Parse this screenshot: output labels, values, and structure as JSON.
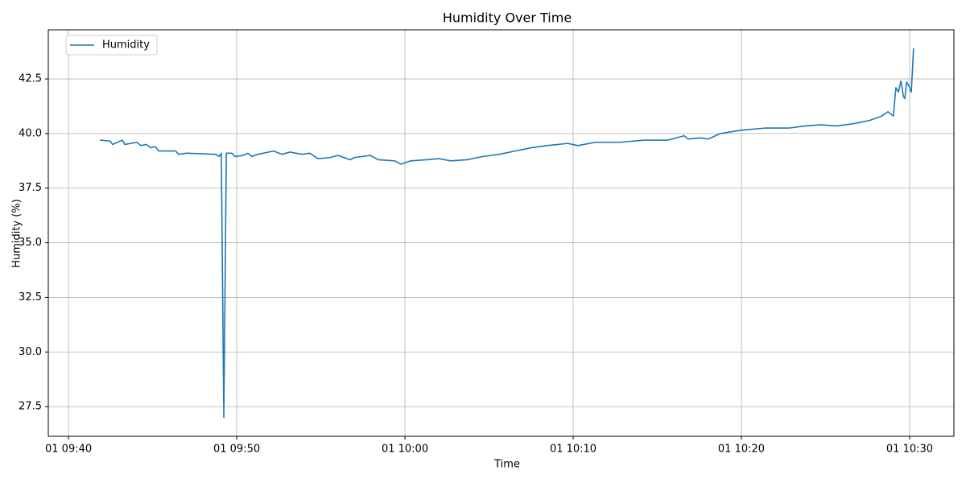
{
  "chart_data": {
    "type": "line",
    "title": "Humidity Over Time",
    "x_label": "Time",
    "y_label": "Humidity (%)",
    "x": [
      "01 09:41:52",
      "01 09:42:29",
      "01 09:42:38",
      "01 09:43:12",
      "01 09:43:21",
      "01 09:44:04",
      "01 09:44:18",
      "01 09:44:38",
      "01 09:44:53",
      "01 09:45:10",
      "01 09:45:22",
      "01 09:46:22",
      "01 09:46:33",
      "01 09:47:02",
      "01 09:48:45",
      "01 09:48:57",
      "01 09:49:05",
      "01 09:49:14",
      "01 09:49:23",
      "01 09:49:43",
      "01 09:49:54",
      "01 09:50:23",
      "01 09:50:40",
      "01 09:50:55",
      "01 09:51:15",
      "01 09:52:12",
      "01 09:52:41",
      "01 09:53:10",
      "01 09:53:53",
      "01 09:54:21",
      "01 09:54:50",
      "01 09:55:33",
      "01 09:56:01",
      "01 09:56:45",
      "01 09:56:59",
      "01 09:57:56",
      "01 09:58:25",
      "01 09:59:23",
      "01 09:59:46",
      "01 10:00:20",
      "01 10:01:18",
      "01 10:02:00",
      "01 10:02:44",
      "01 10:03:41",
      "01 10:04:38",
      "01 10:05:36",
      "01 10:06:33",
      "01 10:07:30",
      "01 10:08:28",
      "01 10:09:40",
      "01 10:10:17",
      "01 10:11:20",
      "01 10:12:47",
      "01 10:14:13",
      "01 10:15:39",
      "01 10:16:36",
      "01 10:16:50",
      "01 10:17:33",
      "01 10:18:02",
      "01 10:18:45",
      "01 10:19:57",
      "01 10:21:23",
      "01 10:22:49",
      "01 10:23:47",
      "01 10:24:44",
      "01 10:25:41",
      "01 10:26:39",
      "01 10:27:37",
      "01 10:28:20",
      "01 10:28:43",
      "01 10:29:02",
      "01 10:29:11",
      "01 10:29:20",
      "01 10:29:29",
      "01 10:29:38",
      "01 10:29:43",
      "01 10:29:49",
      "01 10:29:57",
      "01 10:30:06",
      "01 10:30:14"
    ],
    "series": [
      {
        "name": "Humidity",
        "color": "#1f77b4",
        "values": [
          39.7,
          39.65,
          39.5,
          39.7,
          39.5,
          39.6,
          39.45,
          39.5,
          39.35,
          39.4,
          39.2,
          39.2,
          39.05,
          39.1,
          39.05,
          38.95,
          39.1,
          27.0,
          39.1,
          39.1,
          38.95,
          39.0,
          39.1,
          38.95,
          39.05,
          39.2,
          39.05,
          39.15,
          39.05,
          39.1,
          38.85,
          38.9,
          39.0,
          38.8,
          38.9,
          39.0,
          38.8,
          38.75,
          38.6,
          38.75,
          38.8,
          38.85,
          38.75,
          38.8,
          38.95,
          39.05,
          39.2,
          39.35,
          39.45,
          39.55,
          39.45,
          39.6,
          39.6,
          39.7,
          39.7,
          39.9,
          39.75,
          39.8,
          39.75,
          40.0,
          40.15,
          40.25,
          40.25,
          40.35,
          40.4,
          40.35,
          40.45,
          40.6,
          40.8,
          41.0,
          40.8,
          42.1,
          41.9,
          42.4,
          41.7,
          41.6,
          42.35,
          42.2,
          41.9,
          43.9
        ]
      }
    ],
    "xlim": [
      "01 09:38:48",
      "01 10:32:38"
    ],
    "xticks": [
      "01 09:40",
      "01 09:50",
      "01 10:00",
      "01 10:10",
      "01 10:20",
      "01 10:30"
    ],
    "ylim": [
      26.14,
      44.75
    ],
    "yticks": [
      27.5,
      {
        "value": 30,
        "label": "30.0"
      },
      32.5,
      {
        "value": 35,
        "label": "35.0"
      },
      37.5,
      {
        "value": 40,
        "label": "40.0"
      },
      42.5
    ],
    "grid": true,
    "legend": "upper-left"
  }
}
